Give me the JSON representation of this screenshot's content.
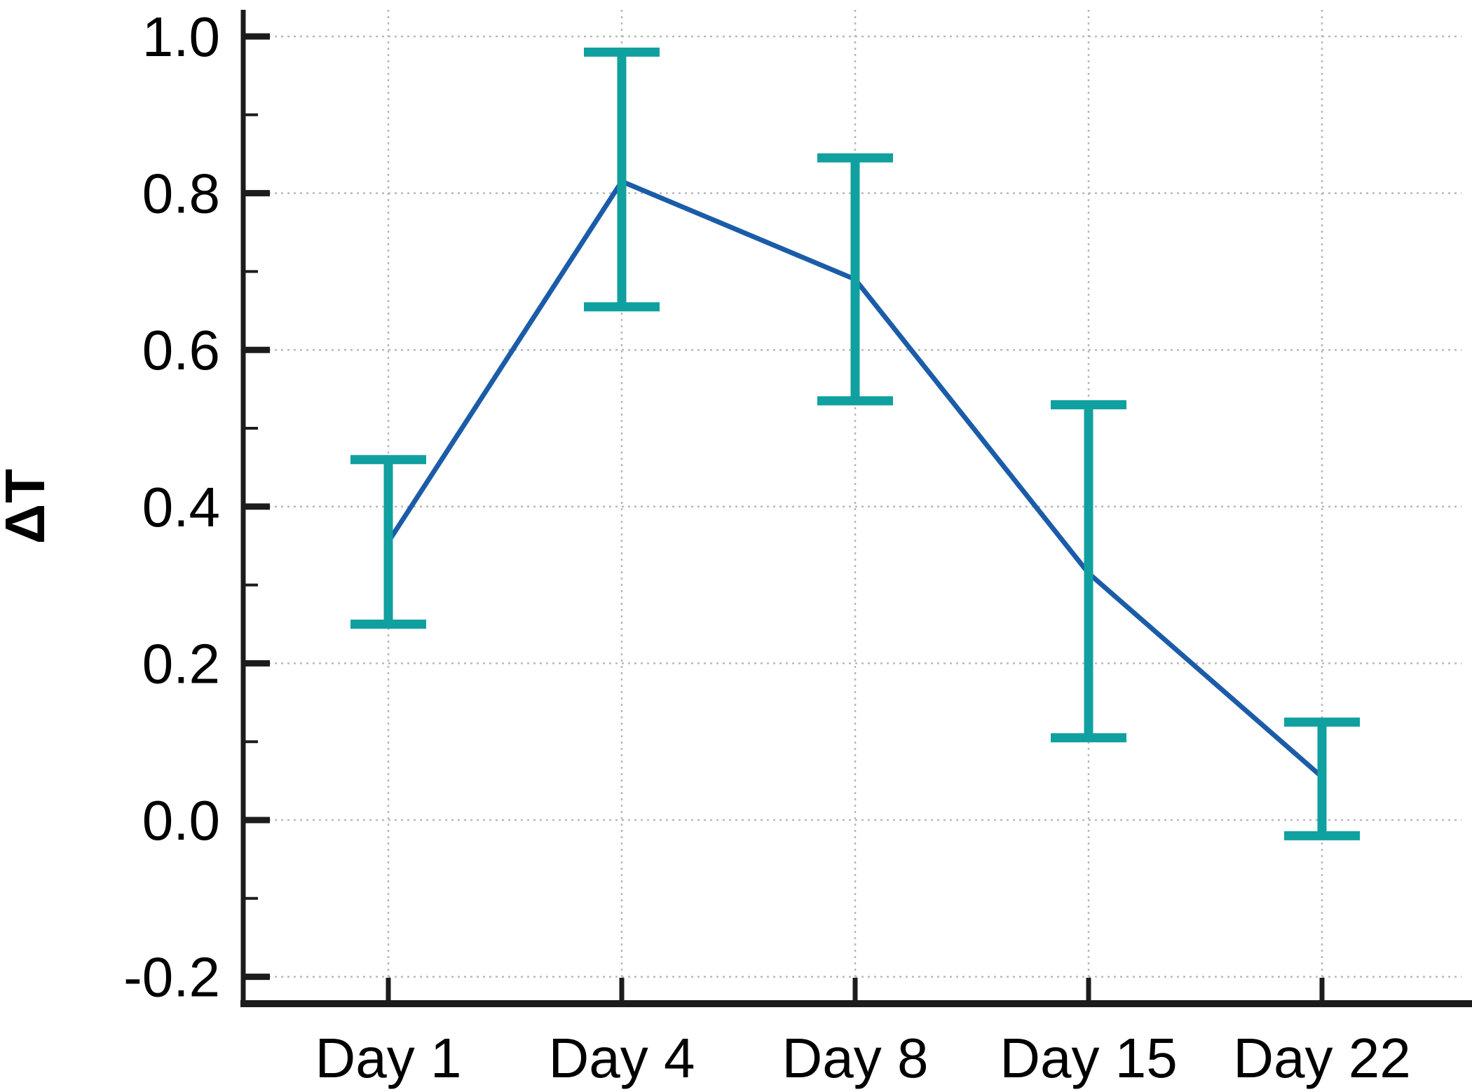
{
  "chart_data": {
    "type": "line",
    "title": "",
    "xlabel": "",
    "ylabel": "ΔT",
    "categories": [
      "Day 1",
      "Day 4",
      "Day 8",
      "Day 15",
      "Day 22"
    ],
    "series": [
      {
        "name": "ΔT",
        "values": [
          0.355,
          0.815,
          0.69,
          0.315,
          0.055
        ],
        "error_upper": [
          0.46,
          0.98,
          0.845,
          0.53,
          0.125
        ],
        "error_lower": [
          0.25,
          0.655,
          0.535,
          0.105,
          -0.02
        ]
      }
    ],
    "y_tick_values": [
      1.0,
      0.8,
      0.6,
      0.4,
      0.2,
      0.0,
      -0.2
    ],
    "y_tick_labels": [
      "1.0",
      "0.8",
      "0.6",
      "0.4",
      "0.2",
      "0.0",
      "-0.2"
    ],
    "y_minor_tick_values": [
      0.9,
      0.7,
      0.5,
      0.3,
      0.1,
      -0.1
    ],
    "ylim": [
      -0.234,
      1.034
    ],
    "grid": "dotted at major y ticks and category x ticks",
    "legend": "none",
    "marker": "none",
    "error_bar_style": "capped T-bars",
    "colors": {
      "line": "#1b5ca8",
      "error_bar": "#11a0a0",
      "axis": "#1c1c1c",
      "grid": "#b9b9b9",
      "text": "#000000"
    }
  }
}
